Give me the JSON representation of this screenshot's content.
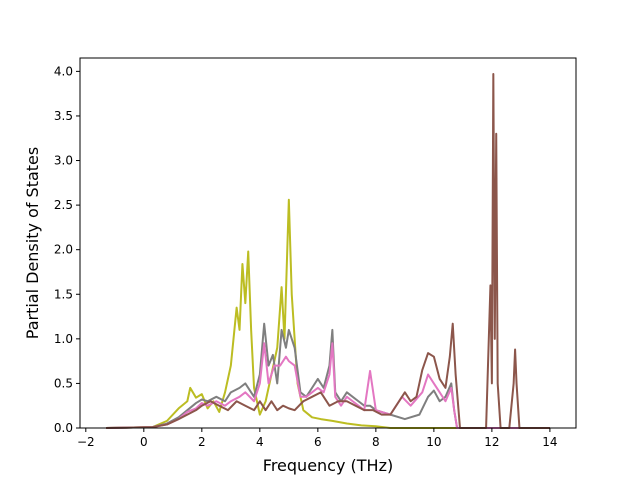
{
  "chart_data": {
    "type": "line",
    "title": "",
    "xlabel": "Frequency (THz)",
    "ylabel": "Partial Density of States",
    "xlim": [
      -2.2,
      14.9
    ],
    "ylim": [
      0,
      4.15
    ],
    "xticks": [
      -2,
      0,
      2,
      4,
      6,
      8,
      10,
      12,
      14
    ],
    "yticks": [
      0.0,
      0.5,
      1.0,
      1.5,
      2.0,
      2.5,
      3.0,
      3.5,
      4.0
    ],
    "xtick_labels": [
      "−2",
      "0",
      "2",
      "4",
      "6",
      "8",
      "10",
      "12",
      "14"
    ],
    "ytick_labels": [
      "0.0",
      "0.5",
      "1.0",
      "1.5",
      "2.0",
      "2.5",
      "3.0",
      "3.5",
      "4.0"
    ],
    "grid": false,
    "legend": "none",
    "series": [
      {
        "color": "#bcbd22",
        "x": [
          -1.3,
          0.3,
          0.8,
          1.2,
          1.5,
          1.6,
          1.8,
          2.0,
          2.2,
          2.4,
          2.6,
          2.8,
          3.0,
          3.2,
          3.3,
          3.4,
          3.5,
          3.6,
          3.7,
          3.8,
          4.0,
          4.2,
          4.4,
          4.6,
          4.75,
          4.85,
          5.0,
          5.1,
          5.3,
          5.5,
          5.8,
          6.1,
          6.5,
          7.0,
          7.5,
          8.0,
          8.5,
          14.0
        ],
        "y": [
          0,
          0.01,
          0.08,
          0.22,
          0.3,
          0.45,
          0.34,
          0.38,
          0.22,
          0.3,
          0.18,
          0.4,
          0.7,
          1.35,
          1.1,
          1.84,
          1.4,
          1.98,
          1.1,
          0.45,
          0.15,
          0.3,
          0.6,
          0.9,
          1.58,
          1.0,
          2.56,
          1.5,
          0.5,
          0.2,
          0.12,
          0.1,
          0.08,
          0.05,
          0.03,
          0.02,
          0,
          0
        ]
      },
      {
        "color": "#7f7f7f",
        "x": [
          -1.3,
          0.3,
          0.8,
          1.2,
          1.5,
          1.8,
          2.0,
          2.2,
          2.5,
          2.8,
          3.0,
          3.3,
          3.5,
          3.8,
          4.0,
          4.15,
          4.3,
          4.45,
          4.6,
          4.75,
          4.9,
          5.0,
          5.2,
          5.4,
          5.6,
          5.8,
          6.0,
          6.2,
          6.4,
          6.5,
          6.6,
          6.8,
          7.0,
          7.2,
          7.4,
          7.6,
          7.8,
          8.0,
          8.5,
          9.0,
          9.5,
          9.8,
          10.0,
          10.2,
          10.4,
          10.6,
          10.7,
          10.8,
          14.0
        ],
        "y": [
          0,
          0.01,
          0.05,
          0.12,
          0.2,
          0.28,
          0.32,
          0.3,
          0.35,
          0.3,
          0.4,
          0.45,
          0.5,
          0.35,
          0.6,
          1.17,
          0.7,
          0.82,
          0.5,
          1.1,
          0.9,
          1.1,
          0.9,
          0.4,
          0.35,
          0.45,
          0.55,
          0.45,
          0.7,
          1.1,
          0.4,
          0.3,
          0.4,
          0.35,
          0.3,
          0.25,
          0.25,
          0.2,
          0.15,
          0.1,
          0.15,
          0.35,
          0.42,
          0.3,
          0.35,
          0.5,
          0.2,
          0,
          0
        ]
      },
      {
        "color": "#e377c2",
        "x": [
          -1.3,
          0.3,
          0.8,
          1.2,
          1.5,
          1.8,
          2.0,
          2.2,
          2.5,
          2.8,
          3.0,
          3.3,
          3.5,
          3.8,
          4.0,
          4.15,
          4.3,
          4.5,
          4.7,
          4.9,
          5.0,
          5.2,
          5.4,
          5.6,
          5.8,
          6.0,
          6.2,
          6.4,
          6.5,
          6.6,
          6.8,
          7.0,
          7.2,
          7.4,
          7.6,
          7.8,
          8.0,
          8.5,
          8.9,
          9.2,
          9.6,
          9.8,
          10.0,
          10.2,
          10.4,
          10.6,
          10.7,
          10.8,
          14.0
        ],
        "y": [
          0,
          0.01,
          0.04,
          0.1,
          0.18,
          0.22,
          0.28,
          0.25,
          0.3,
          0.25,
          0.3,
          0.35,
          0.4,
          0.3,
          0.5,
          0.95,
          0.5,
          0.7,
          0.7,
          0.8,
          0.75,
          0.7,
          0.35,
          0.35,
          0.4,
          0.45,
          0.4,
          0.6,
          0.95,
          0.35,
          0.25,
          0.35,
          0.3,
          0.25,
          0.2,
          0.64,
          0.2,
          0.15,
          0.35,
          0.25,
          0.4,
          0.6,
          0.5,
          0.4,
          0.3,
          0.45,
          0.2,
          0,
          0
        ]
      },
      {
        "color": "#8c564b",
        "x": [
          -1.3,
          0.3,
          0.8,
          1.2,
          1.5,
          1.8,
          2.0,
          2.3,
          2.6,
          2.9,
          3.2,
          3.5,
          3.8,
          4.0,
          4.2,
          4.4,
          4.6,
          4.8,
          5.0,
          5.2,
          5.5,
          5.8,
          6.1,
          6.4,
          6.7,
          7.0,
          7.3,
          7.6,
          7.9,
          8.2,
          8.5,
          8.8,
          9.0,
          9.2,
          9.4,
          9.6,
          9.8,
          10.0,
          10.2,
          10.4,
          10.55,
          10.65,
          10.75,
          10.9,
          11.8,
          11.95,
          12.0,
          12.05,
          12.1,
          12.15,
          12.2,
          12.3,
          12.6,
          12.75,
          12.8,
          12.85,
          12.95,
          14.0
        ],
        "y": [
          0,
          0.01,
          0.04,
          0.1,
          0.15,
          0.2,
          0.25,
          0.3,
          0.25,
          0.2,
          0.3,
          0.25,
          0.2,
          0.3,
          0.2,
          0.3,
          0.2,
          0.25,
          0.22,
          0.2,
          0.3,
          0.35,
          0.4,
          0.25,
          0.3,
          0.3,
          0.25,
          0.2,
          0.2,
          0.15,
          0.15,
          0.3,
          0.4,
          0.3,
          0.35,
          0.65,
          0.84,
          0.8,
          0.55,
          0.45,
          0.8,
          1.17,
          0.6,
          0,
          0,
          1.6,
          0.5,
          3.97,
          1.0,
          3.3,
          0.5,
          0,
          0,
          0.5,
          0.88,
          0.5,
          0,
          0
        ]
      }
    ]
  }
}
